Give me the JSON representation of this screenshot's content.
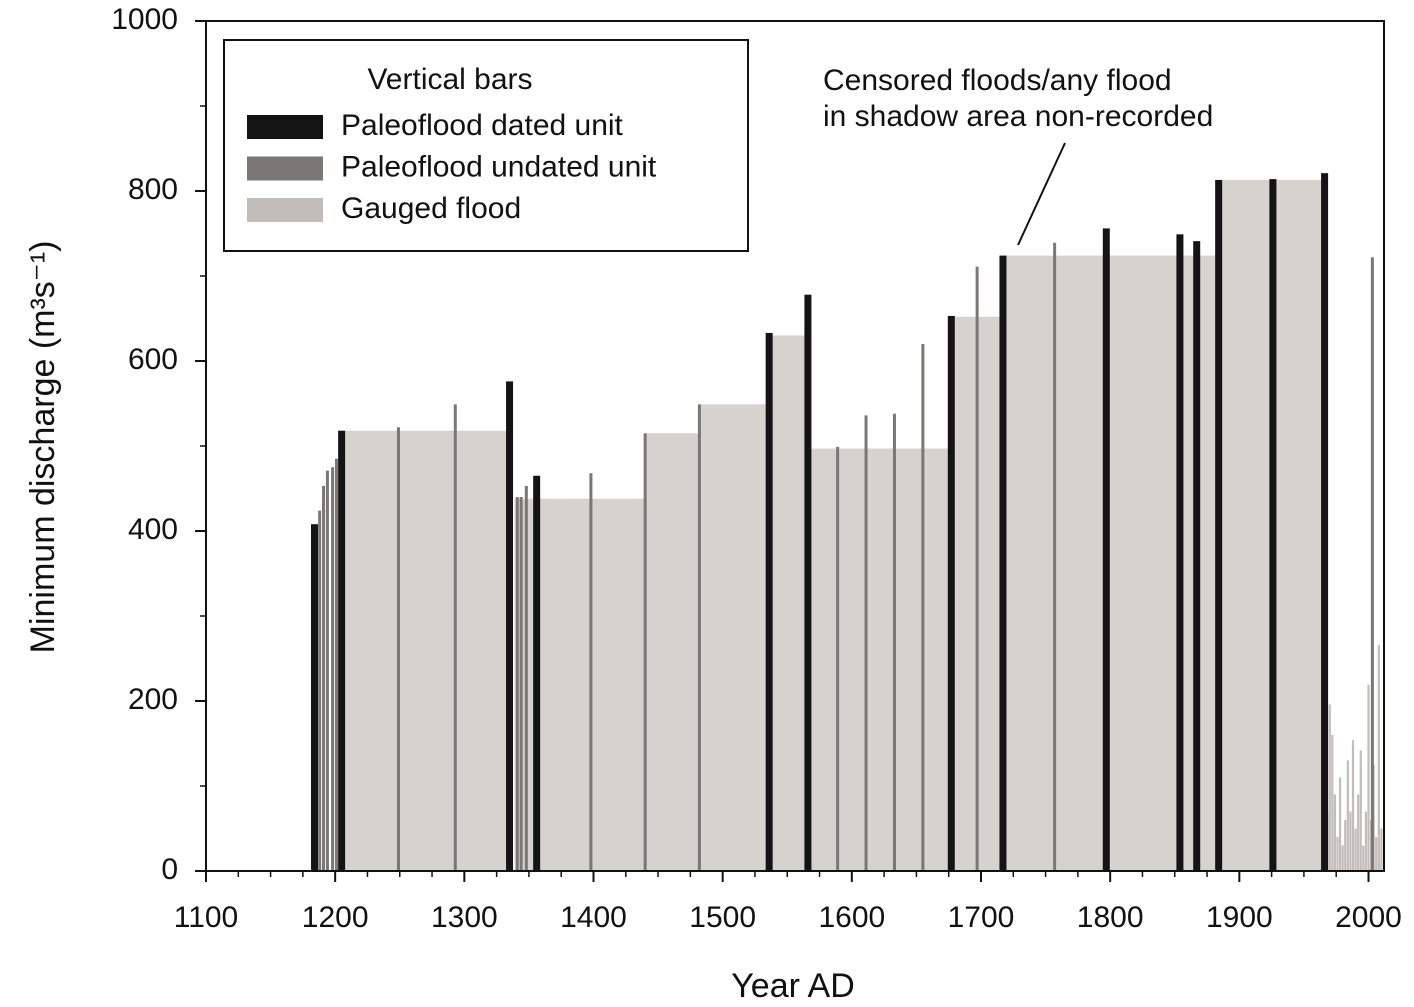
{
  "chart_data": {
    "type": "bar",
    "xlabel": "Year AD",
    "ylabel": "Minimum discharge (m³s⁻¹)",
    "xlim": [
      1100,
      2012
    ],
    "ylim": [
      0,
      1000
    ],
    "xticks": [
      1100,
      1200,
      1300,
      1400,
      1500,
      1600,
      1700,
      1800,
      1900,
      2000
    ],
    "yticks": [
      0,
      200,
      400,
      600,
      800,
      1000
    ],
    "legend_title": "Vertical bars",
    "annotation": [
      "Censored floods/any flood",
      "in shadow area non-recorded"
    ],
    "shaded_areas": {
      "color": "#d6d2cd",
      "x_ranges": [
        [
          1205,
          1335
        ],
        [
          1339,
          1440
        ],
        [
          1440,
          1482
        ],
        [
          1482,
          1536
        ],
        [
          1536,
          1566
        ],
        [
          1566,
          1677
        ],
        [
          1677,
          1717
        ],
        [
          1717,
          1884
        ],
        [
          1884,
          1966
        ]
      ],
      "values": [
        518,
        438,
        515,
        549,
        630,
        497,
        652,
        724,
        813
      ]
    },
    "series": [
      {
        "name": "Paleoflood dated unit",
        "color": "#141414",
        "x": [
          1184,
          1205,
          1335,
          1356,
          1536,
          1566,
          1677,
          1717,
          1797,
          1854,
          1867,
          1884,
          1926,
          1966
        ],
        "values": [
          408,
          518,
          576,
          465,
          633,
          678,
          653,
          724,
          756,
          749,
          741,
          813,
          814,
          821
        ]
      },
      {
        "name": "Paleoflood undated unit",
        "color": "#7a7775",
        "x": [
          1188,
          1191,
          1194,
          1198,
          1201,
          1249,
          1293,
          1341,
          1344,
          1348,
          1398,
          1440,
          1482,
          1589,
          1611,
          1633,
          1655,
          1697,
          1757,
          2003
        ],
        "values": [
          424,
          453,
          471,
          475,
          485,
          522,
          549,
          440,
          440,
          453,
          468,
          515,
          549,
          499,
          536,
          538,
          620,
          711,
          739,
          722
        ]
      },
      {
        "name": "Gauged flood",
        "color": "#c2bdb8",
        "x": [
          1964,
          1966,
          1968,
          1970,
          1972,
          1974,
          1976,
          1978,
          1980,
          1982,
          1984,
          1986,
          1988,
          1990,
          1992,
          1994,
          1996,
          1998,
          2000,
          2002,
          2004,
          2006,
          2008,
          2010
        ],
        "values": [
          248,
          120,
          70,
          196,
          160,
          90,
          40,
          110,
          30,
          60,
          130,
          70,
          154,
          50,
          90,
          142,
          30,
          70,
          219,
          60,
          125,
          40,
          266,
          50
        ]
      }
    ]
  }
}
